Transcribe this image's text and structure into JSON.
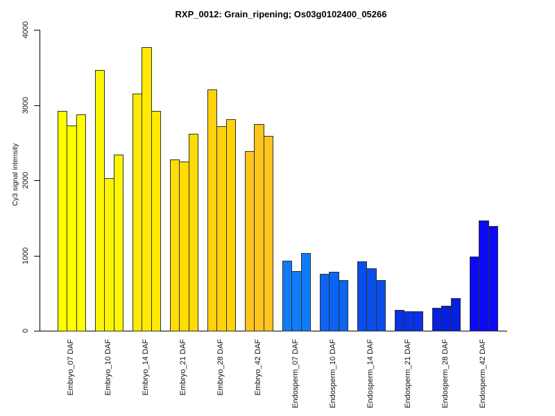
{
  "title": "RXP_0012: Grain_ripening; Os03g0102400_05266",
  "chart_data": {
    "type": "bar",
    "title": "RXP_0012: Grain_ripening; Os03g0102400_05266",
    "xlabel": "",
    "ylabel": "Cy3 signal intensity",
    "ylim": [
      0,
      4000
    ],
    "yticks": [
      0,
      1000,
      2000,
      3000,
      4000
    ],
    "grid": "off",
    "legend": "none",
    "bars_per_group": 3,
    "groups": [
      {
        "label": "Embryo_07 DAF",
        "color": "#ffff00",
        "values": [
          2920,
          2730,
          2880
        ]
      },
      {
        "label": "Embryo_10 DAF",
        "color": "#fcf500",
        "values": [
          3470,
          2030,
          2340
        ]
      },
      {
        "label": "Embryo_14 DAF",
        "color": "#ffe900",
        "values": [
          3150,
          3770,
          2920
        ]
      },
      {
        "label": "Embryo_21 DAF",
        "color": "#ffdc05",
        "values": [
          2280,
          2250,
          2620
        ]
      },
      {
        "label": "Embryo_28 DAF",
        "color": "#ffd20a",
        "values": [
          3210,
          2720,
          2810
        ]
      },
      {
        "label": "Embryo_42 DAF",
        "color": "#ffc41e",
        "values": [
          2390,
          2750,
          2590
        ]
      },
      {
        "label": "Endosperm_07 DAF",
        "color": "#0f7df8",
        "values": [
          930,
          790,
          1030
        ]
      },
      {
        "label": "Endosperm_10 DAF",
        "color": "#0c64f2",
        "values": [
          760,
          780,
          670
        ]
      },
      {
        "label": "Endosperm_14 DAF",
        "color": "#0a4eec",
        "values": [
          920,
          830,
          670
        ]
      },
      {
        "label": "Endosperm_21 DAF",
        "color": "#0732e6",
        "values": [
          280,
          260,
          260
        ]
      },
      {
        "label": "Endosperm_28 DAF",
        "color": "#0520de",
        "values": [
          300,
          330,
          430
        ]
      },
      {
        "label": "Endosperm_42 DAF",
        "color": "#0a0af8",
        "values": [
          990,
          1470,
          1390
        ]
      }
    ]
  }
}
